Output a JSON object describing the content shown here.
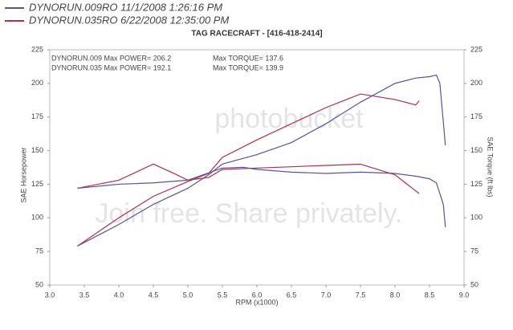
{
  "chart_data": {
    "type": "line",
    "title": "TAG RACECRAFT - [416-418-2414]",
    "x_label": "RPM (x1000)",
    "y_label": "SAE Horsepower",
    "y2_label": "SAE Torque (ft lbs)",
    "xlim": [
      3.0,
      9.0
    ],
    "xticks": [
      {
        "value": 3,
        "label": "3.0"
      },
      {
        "value": 3.5,
        "label": "3.5"
      },
      {
        "value": 4,
        "label": "4.0"
      },
      {
        "value": 4.5,
        "label": "4.5"
      },
      {
        "value": 5,
        "label": "5.0"
      },
      {
        "value": 5.5,
        "label": "5.5"
      },
      {
        "value": 6,
        "label": "6.0"
      },
      {
        "value": 6.5,
        "label": "6.5"
      },
      {
        "value": 7,
        "label": "7.0"
      },
      {
        "value": 7.5,
        "label": "7.5"
      },
      {
        "value": 8,
        "label": "8.0"
      },
      {
        "value": 8.5,
        "label": "8.5"
      },
      {
        "value": 9,
        "label": "9.0"
      }
    ],
    "ylim": [
      50,
      225
    ],
    "yticks": [
      50,
      75,
      100,
      125,
      150,
      175,
      200,
      225
    ],
    "y2lim": [
      50,
      225
    ],
    "y2ticks": [
      50,
      75,
      100,
      125,
      150,
      175,
      200,
      225
    ],
    "annotations": [
      "DYNORUN.009  Max POWER= 206.2",
      "Max TORQUE= 137.6",
      "DYNORUN.035  Max POWER= 192.1",
      "Max TORQUE= 139.9",
      "photobucket",
      "Join free. Share privately."
    ],
    "series": [
      {
        "name": "DYNORUN.009RO  11/1/2008 1:26:16 PM",
        "color": "#55559a",
        "x": [
          3.4,
          4.0,
          4.5,
          5.0,
          5.3,
          5.5,
          6.0,
          6.5,
          7.0,
          7.5,
          8.0,
          8.3,
          8.5,
          8.6,
          8.65,
          8.73
        ],
        "values": [
          79,
          95,
          110,
          122,
          132,
          140,
          147,
          156,
          170,
          186,
          200,
          204,
          205,
          206.2,
          200,
          154
        ]
      },
      {
        "name": "DYNORUN.035RO  6/22/2008 12:35:00 PM",
        "color": "#b0304a",
        "x": [
          3.4,
          4.0,
          4.5,
          5.0,
          5.3,
          5.5,
          6.0,
          6.5,
          7.0,
          7.5,
          8.0,
          8.3,
          8.35
        ],
        "values": [
          79,
          100,
          116,
          127,
          133,
          145,
          158,
          170,
          182,
          192.1,
          188,
          184,
          187
        ]
      },
      {
        "color": "#55559a",
        "axis": "y2",
        "x": [
          3.4,
          4.0,
          4.5,
          5.0,
          5.5,
          5.8,
          6.0,
          6.5,
          7.0,
          7.5,
          8.0,
          8.3,
          8.5,
          8.6,
          8.7,
          8.73
        ],
        "values": [
          122,
          125,
          126,
          128,
          137,
          137.6,
          136,
          134,
          133,
          134,
          133,
          131,
          129,
          126,
          110,
          93
        ]
      },
      {
        "color": "#b0304a",
        "axis": "y2",
        "x": [
          3.4,
          4.0,
          4.5,
          4.8,
          5.0,
          5.3,
          5.5,
          6.0,
          6.5,
          7.0,
          7.5,
          8.0,
          8.3,
          8.35
        ],
        "values": [
          122,
          128,
          140,
          133,
          128,
          130,
          136,
          137,
          138,
          139,
          139.9,
          132,
          120,
          118
        ]
      }
    ]
  }
}
